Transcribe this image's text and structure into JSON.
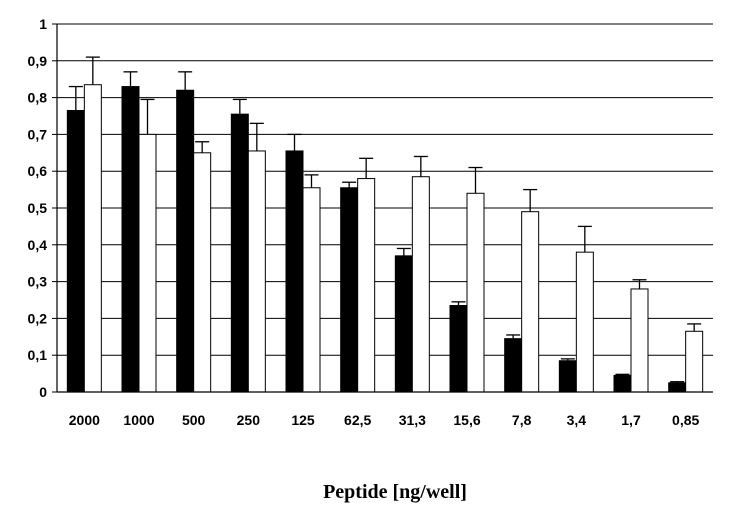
{
  "chart_data": {
    "type": "bar",
    "title": "",
    "xlabel": "Peptide [ng/well]",
    "ylabel": "",
    "ylim": [
      0,
      1
    ],
    "y_ticks": [
      "0",
      "0,1",
      "0,2",
      "0,3",
      "0,4",
      "0,5",
      "0,6",
      "0,7",
      "0,8",
      "0,9",
      "1"
    ],
    "grid": "horizontal",
    "categories": [
      "2000",
      "1000",
      "500",
      "250",
      "125",
      "62,5",
      "31,3",
      "15,6",
      "7,8",
      "3,4",
      "1,7",
      "0,85"
    ],
    "series": [
      {
        "color": "#000000",
        "values": [
          0.765,
          0.83,
          0.82,
          0.755,
          0.655,
          0.555,
          0.37,
          0.235,
          0.145,
          0.085,
          0.045,
          0.025
        ],
        "errors": [
          0.065,
          0.04,
          0.05,
          0.04,
          0.045,
          0.015,
          0.02,
          0.01,
          0.01,
          0.005,
          0.003,
          0.003
        ]
      },
      {
        "color": "#ffffff",
        "values": [
          0.835,
          0.7,
          0.65,
          0.655,
          0.555,
          0.58,
          0.585,
          0.54,
          0.49,
          0.38,
          0.28,
          0.165
        ],
        "errors": [
          0.075,
          0.095,
          0.03,
          0.075,
          0.035,
          0.055,
          0.055,
          0.07,
          0.06,
          0.07,
          0.025,
          0.02
        ]
      }
    ]
  }
}
